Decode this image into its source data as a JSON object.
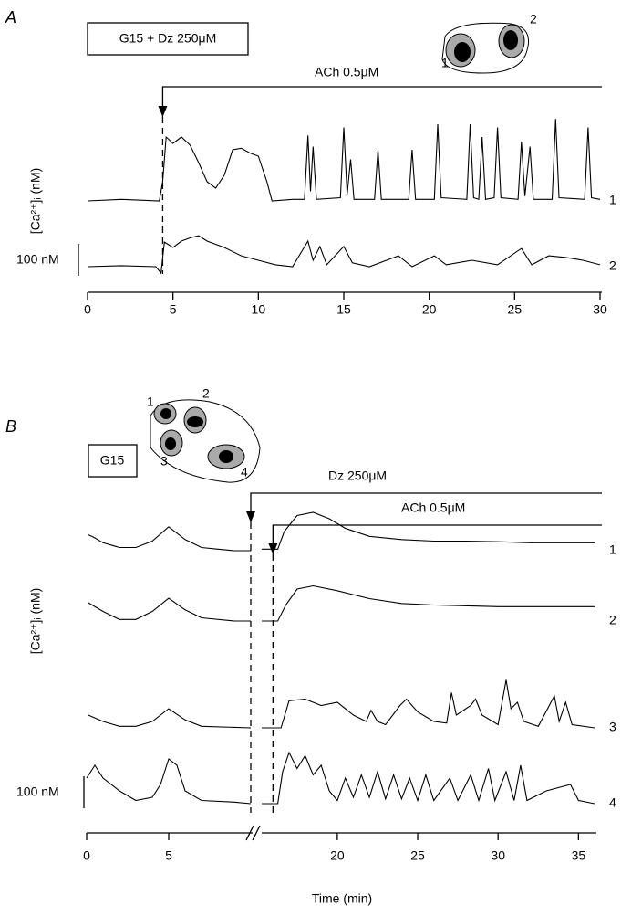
{
  "chart_data": [
    {
      "type": "line",
      "panel": "A",
      "box_label": "G15 + Dz 250μM",
      "ylabel": "[Ca²⁺]ᵢ (nM)",
      "scale_bar": {
        "value": 100,
        "label": "100 nM"
      },
      "cell_labels": [
        "1",
        "2"
      ],
      "xlim": [
        0,
        30
      ],
      "xticks": [
        0,
        5,
        10,
        15,
        20,
        25,
        30
      ],
      "annotations": [
        {
          "text": "ACh 0.5μM",
          "x": 4.4
        }
      ],
      "series": [
        {
          "name": "1",
          "color": "#000000",
          "x": [
            0,
            2,
            4.2,
            4.4,
            4.6,
            5,
            5.5,
            6,
            6.5,
            7,
            7.5,
            8,
            8.5,
            9,
            9.5,
            10,
            10.5,
            10.8,
            12,
            12.7,
            12.9,
            13.05,
            13.2,
            13.4,
            14.8,
            15,
            15.2,
            15.4,
            15.6,
            16.8,
            17,
            17.2,
            18.8,
            19,
            19.2,
            20.3,
            20.5,
            20.7,
            22.2,
            22.4,
            22.6,
            22.9,
            23.1,
            23.3,
            23.8,
            24,
            24.2,
            25.2,
            25.4,
            25.6,
            25.9,
            26.1,
            27.2,
            27.4,
            27.6,
            29.1,
            29.3,
            29.5,
            30
          ],
          "values": [
            0,
            5,
            0,
            60,
            200,
            180,
            200,
            175,
            120,
            60,
            40,
            80,
            160,
            165,
            150,
            140,
            60,
            0,
            5,
            5,
            205,
            30,
            170,
            5,
            10,
            230,
            20,
            130,
            5,
            5,
            160,
            5,
            5,
            160,
            5,
            5,
            240,
            10,
            5,
            240,
            10,
            5,
            200,
            5,
            10,
            230,
            10,
            5,
            185,
            15,
            170,
            5,
            5,
            257,
            10,
            5,
            230,
            10,
            5
          ]
        },
        {
          "name": "2",
          "color": "#000000",
          "x": [
            0,
            2,
            4,
            4.3,
            4.5,
            5,
            5.5,
            6,
            6.5,
            7,
            8,
            9,
            10,
            11,
            12,
            12.9,
            13.2,
            13.6,
            14,
            15,
            15.5,
            16.5,
            18.2,
            19,
            20.3,
            21,
            22.5,
            24,
            25.4,
            26,
            27,
            28,
            29,
            30
          ],
          "values": [
            0,
            3,
            0,
            -20,
            77,
            60,
            80,
            90,
            97,
            80,
            60,
            34,
            20,
            6,
            0,
            80,
            20,
            63,
            6,
            63,
            12,
            0,
            34,
            0,
            34,
            6,
            20,
            6,
            57,
            6,
            34,
            29,
            20,
            6
          ]
        }
      ]
    },
    {
      "type": "line",
      "panel": "B",
      "box_label": "G15",
      "ylabel": "[Ca²⁺]ᵢ (nM)",
      "scale_bar": {
        "value": 100,
        "label": "100 nM"
      },
      "cell_labels": [
        "1",
        "2",
        "3",
        "4"
      ],
      "xlabel": "Time (min)",
      "x_segments": [
        [
          0,
          10
        ],
        [
          15.3,
          36
        ]
      ],
      "xticks": [
        0,
        5,
        20,
        25,
        30,
        35
      ],
      "annotations": [
        {
          "text": "Dz 250μM",
          "x": 10
        },
        {
          "text": "ACh 0.5μM",
          "x": 16
        }
      ],
      "series": [
        {
          "name": "1",
          "color": "#000000",
          "x": [
            0.1,
            0.5,
            1,
            2,
            3,
            4,
            5,
            6,
            7,
            8,
            9,
            10,
            12.5,
            15.3,
            16.3,
            16.7,
            17.5,
            18.5,
            19.5,
            20.5,
            22,
            24,
            26,
            28,
            30,
            32,
            34,
            36
          ],
          "values": [
            50,
            40,
            25,
            10,
            10,
            30,
            75,
            35,
            10,
            5,
            0,
            0,
            null,
            5,
            5,
            60,
            110,
            120,
            100,
            70,
            45,
            35,
            30,
            30,
            28,
            25,
            25,
            25
          ]
        },
        {
          "name": "2",
          "color": "#000000",
          "x": [
            0.1,
            1,
            2,
            3,
            4,
            5,
            6,
            7,
            9,
            10,
            12.5,
            15.3,
            16.3,
            16.8,
            17.5,
            18.5,
            20,
            22,
            24,
            26,
            30,
            36
          ],
          "values": [
            57,
            30,
            5,
            5,
            30,
            71,
            35,
            10,
            0,
            0,
            null,
            0,
            0,
            50,
            100,
            110,
            95,
            70,
            55,
            50,
            45,
            45
          ]
        },
        {
          "name": "3",
          "color": "#000000",
          "x": [
            0.1,
            1,
            2,
            3,
            4,
            5,
            6,
            7,
            10,
            12.5,
            15.3,
            16.5,
            17,
            18,
            19,
            20,
            21,
            21.8,
            22.1,
            22.5,
            23,
            23.9,
            24.3,
            25,
            26,
            26.8,
            27.1,
            27.4,
            28.3,
            28.6,
            29,
            30,
            30.5,
            30.8,
            31.2,
            31.6,
            32.5,
            33.5,
            33.8,
            34.2,
            34.6,
            36
          ],
          "values": [
            40,
            20,
            5,
            5,
            20,
            60,
            25,
            5,
            0,
            null,
            0,
            0,
            85,
            90,
            70,
            80,
            40,
            20,
            55,
            20,
            10,
            70,
            90,
            50,
            20,
            15,
            110,
            40,
            70,
            90,
            40,
            10,
            150,
            60,
            80,
            20,
            5,
            100,
            20,
            80,
            10,
            0
          ]
        },
        {
          "name": "4",
          "color": "#000000",
          "x": [
            0,
            0.5,
            1,
            2,
            3,
            4,
            4.5,
            5,
            5.5,
            6,
            7,
            9,
            10,
            12.5,
            15.3,
            16.3,
            16.6,
            17,
            17.5,
            18,
            18.5,
            19,
            19.5,
            20,
            20.5,
            21,
            21.5,
            22,
            22.5,
            23,
            23.5,
            24,
            24.5,
            25,
            25.5,
            26,
            27,
            27.5,
            28.3,
            28.8,
            29.4,
            29.8,
            30.5,
            31,
            31.4,
            31.8,
            33,
            34.5,
            35,
            36
          ],
          "values": [
            80,
            120,
            80,
            40,
            10,
            20,
            60,
            140,
            120,
            40,
            10,
            5,
            0,
            null,
            0,
            0,
            100,
            160,
            110,
            150,
            90,
            120,
            40,
            10,
            80,
            20,
            90,
            20,
            100,
            15,
            90,
            15,
            80,
            10,
            90,
            10,
            80,
            10,
            90,
            10,
            110,
            10,
            100,
            10,
            120,
            10,
            40,
            60,
            10,
            0
          ]
        }
      ]
    }
  ]
}
